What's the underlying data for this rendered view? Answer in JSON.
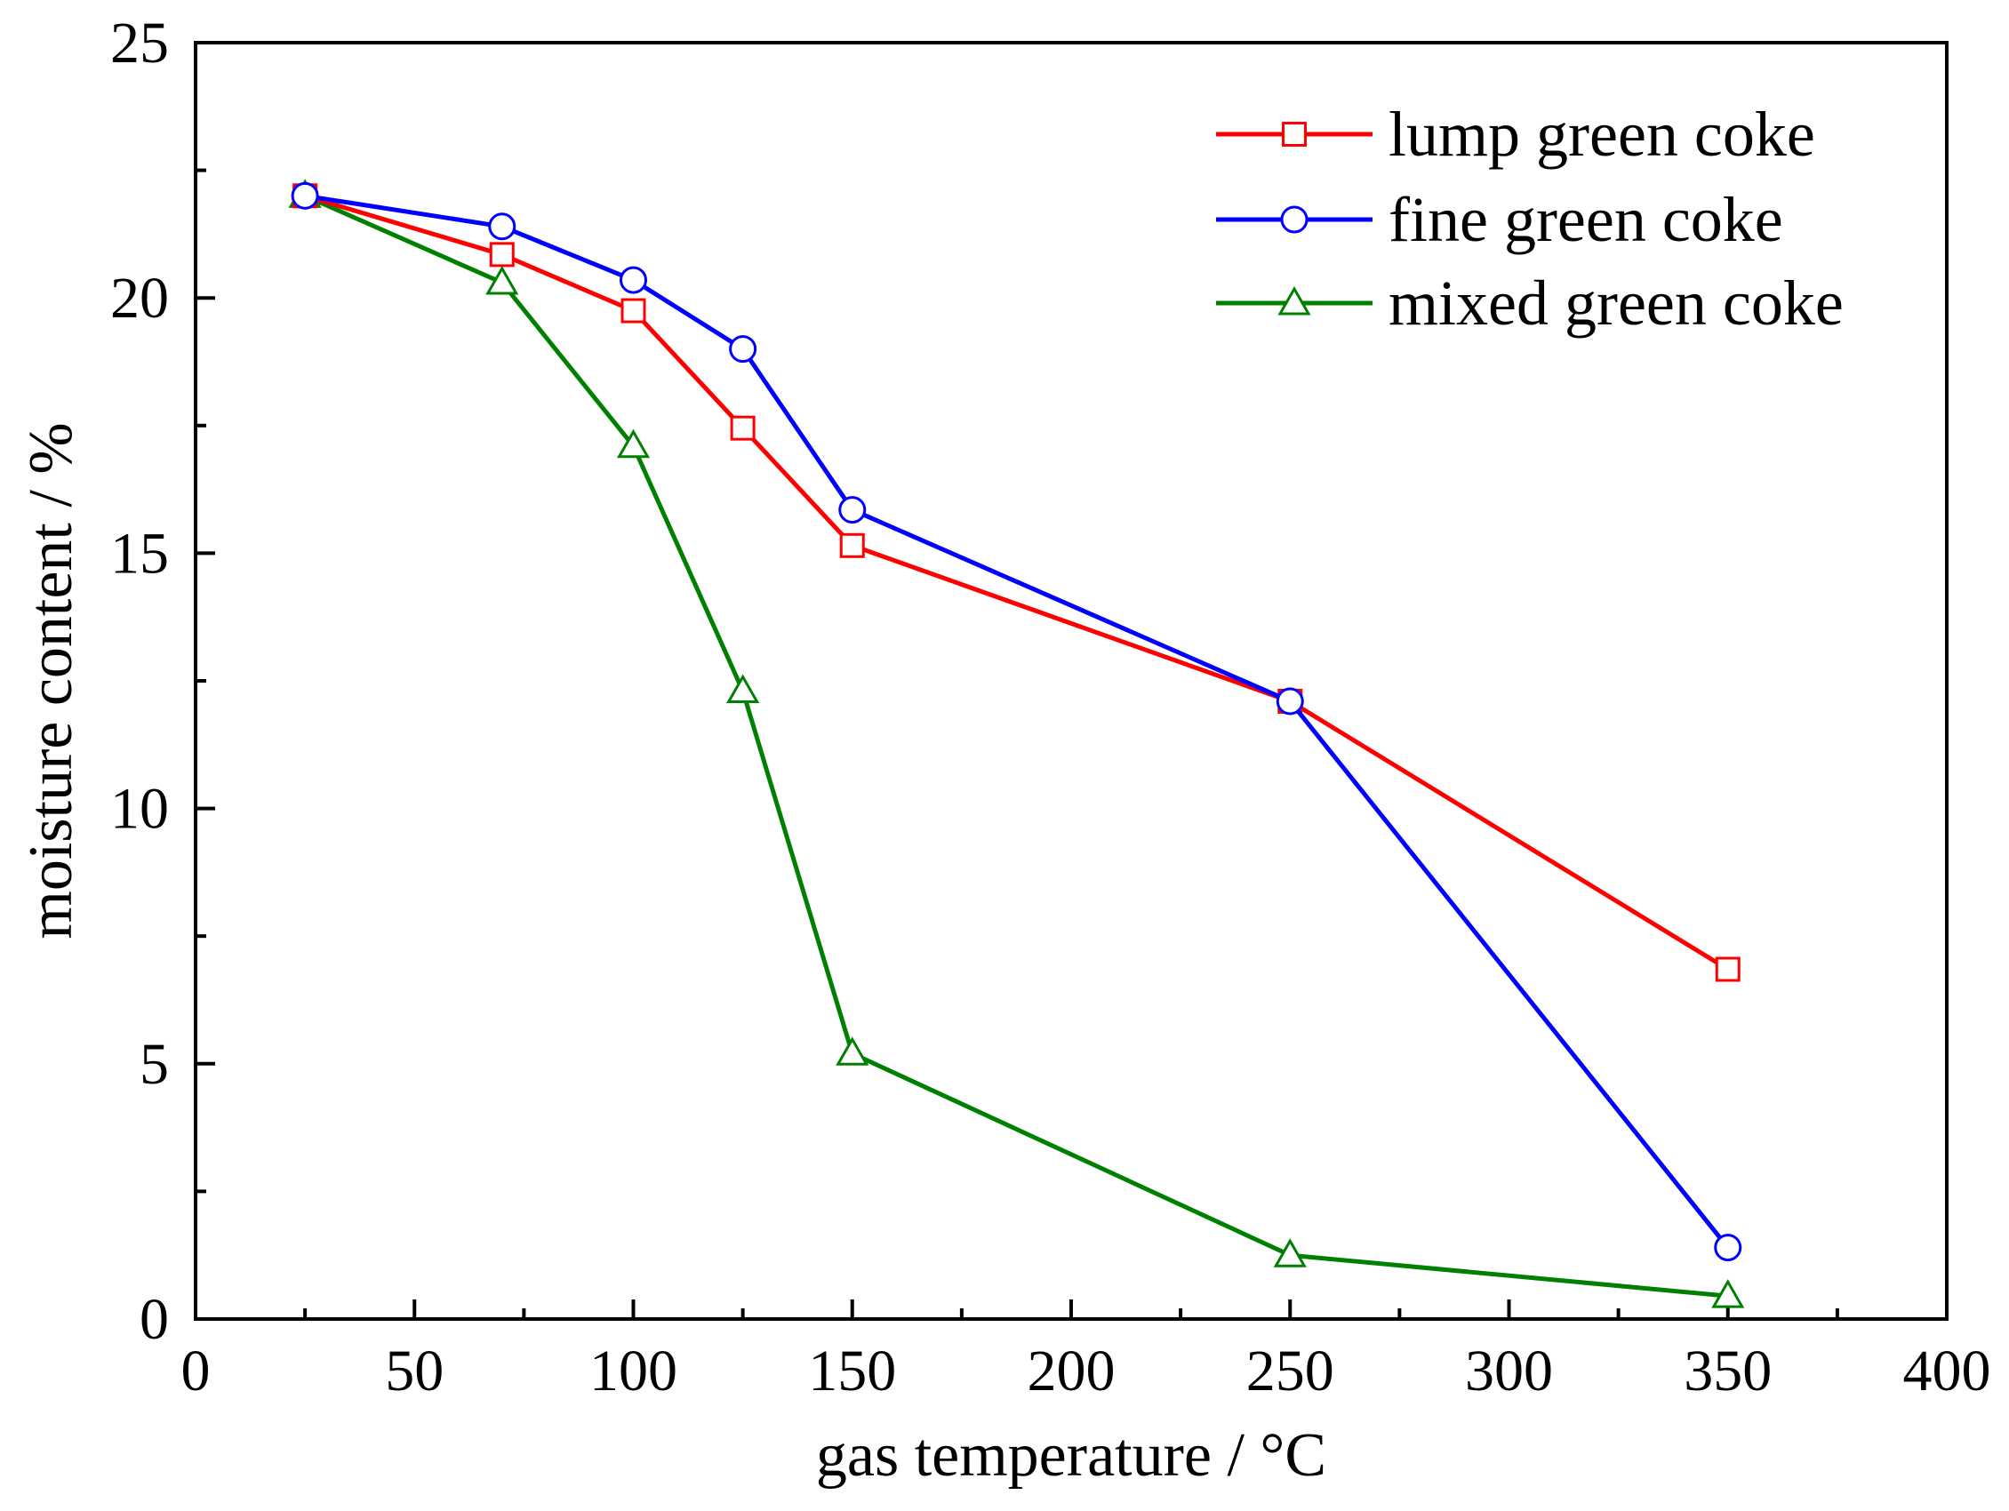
{
  "chart_data": {
    "type": "line",
    "title": "",
    "xlabel": "gas temperature / °C",
    "ylabel": "moisture content / %",
    "xlim": [
      0,
      400
    ],
    "ylim": [
      0,
      25
    ],
    "xticks": [
      0,
      50,
      100,
      150,
      200,
      250,
      300,
      350,
      400
    ],
    "yticks": [
      0,
      5,
      10,
      15,
      20,
      25
    ],
    "grid": false,
    "legend_position": "top-right",
    "series": [
      {
        "name": "lump green coke",
        "color": "#ff0000",
        "marker": "square",
        "x": [
          25,
          70,
          100,
          125,
          150,
          250,
          350
        ],
        "y": [
          22.0,
          20.85,
          19.75,
          17.45,
          15.15,
          12.1,
          6.85
        ]
      },
      {
        "name": "fine green coke",
        "color": "#0000ff",
        "marker": "circle",
        "x": [
          25,
          70,
          100,
          125,
          150,
          250,
          350
        ],
        "y": [
          22.0,
          21.4,
          20.35,
          19.0,
          15.85,
          12.1,
          1.4
        ]
      },
      {
        "name": "mixed green coke",
        "color": "#008000",
        "marker": "triangle",
        "x": [
          25,
          70,
          100,
          125,
          150,
          250,
          350
        ],
        "y": [
          22.0,
          20.3,
          17.1,
          12.3,
          5.2,
          1.25,
          0.45
        ]
      }
    ]
  }
}
